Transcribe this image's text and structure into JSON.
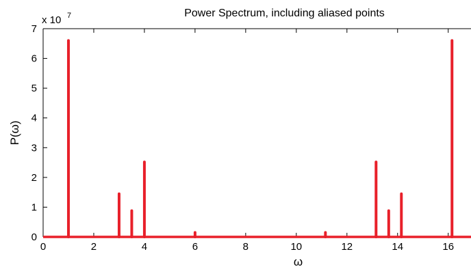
{
  "chart_data": {
    "type": "bar",
    "title": "Power Spectrum, including aliased points",
    "xlabel": "ω",
    "ylabel": "P(ω)",
    "y_scale_label": "x 10",
    "y_scale_exponent": "7",
    "xlim": [
      0,
      16.9
    ],
    "ylim": [
      0,
      7
    ],
    "x_ticks": [
      0,
      2,
      4,
      6,
      8,
      10,
      12,
      14,
      16
    ],
    "y_ticks": [
      0,
      1,
      2,
      3,
      4,
      5,
      6,
      7
    ],
    "grid": false,
    "series": [
      {
        "color": "#e8202a",
        "x": [
          1.0,
          3.0,
          3.5,
          4.0,
          6.0,
          11.15,
          13.15,
          13.65,
          14.15,
          16.15
        ],
        "values": [
          6.6,
          1.45,
          0.88,
          2.52,
          0.15,
          0.15,
          2.52,
          0.88,
          1.45,
          6.6
        ]
      }
    ]
  }
}
